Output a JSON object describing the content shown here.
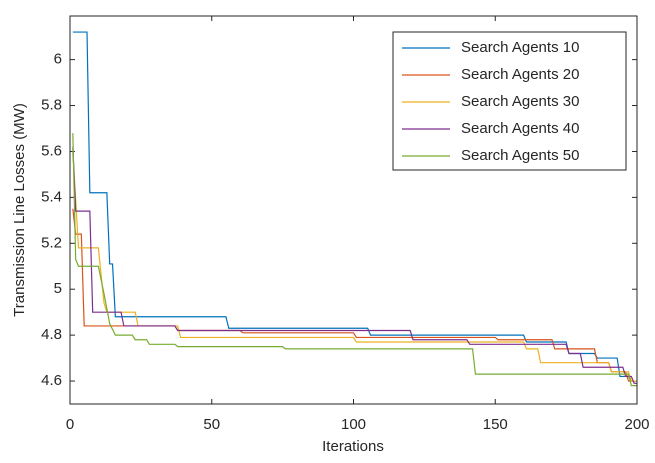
{
  "chart_data": {
    "type": "line",
    "xlabel": "Iterations",
    "ylabel": "Transmission Line Losses (MW)",
    "xlim": [
      0,
      200
    ],
    "xticks": [
      0,
      50,
      100,
      150,
      200
    ],
    "ylim": [
      4.5,
      6.19
    ],
    "yticks": [
      4.6,
      4.8,
      5,
      5.2,
      5.4,
      5.6,
      5.8,
      6
    ],
    "legend": "upper right",
    "series": [
      {
        "name": "Search Agents 10",
        "color": "#0072bd",
        "x": [
          1,
          6,
          7,
          13,
          14,
          15,
          16,
          55,
          56,
          105,
          106,
          160,
          161,
          175,
          176,
          185,
          186,
          193,
          194,
          197,
          198,
          200
        ],
        "values": [
          6.12,
          6.12,
          5.42,
          5.42,
          5.11,
          5.11,
          4.88,
          4.88,
          4.83,
          4.83,
          4.8,
          4.8,
          4.77,
          4.77,
          4.72,
          4.72,
          4.7,
          4.7,
          4.62,
          4.62,
          4.6,
          4.6
        ]
      },
      {
        "name": "Search Agents 20",
        "color": "#d95319",
        "x": [
          1,
          2,
          4,
          5,
          37,
          38,
          60,
          61,
          100,
          101,
          150,
          151,
          170,
          171,
          185,
          186,
          190,
          191,
          196,
          197,
          200
        ],
        "values": [
          5.35,
          5.24,
          5.24,
          4.84,
          4.84,
          4.82,
          4.82,
          4.81,
          4.81,
          4.79,
          4.79,
          4.78,
          4.78,
          4.74,
          4.74,
          4.68,
          4.68,
          4.64,
          4.64,
          4.6,
          4.6
        ]
      },
      {
        "name": "Search Agents 30",
        "color": "#edb120",
        "x": [
          1,
          3,
          10,
          12,
          13,
          23,
          24,
          38,
          39,
          100,
          101,
          160,
          161,
          165,
          166,
          190,
          191,
          197,
          198,
          200
        ],
        "values": [
          5.6,
          5.18,
          5.18,
          4.94,
          4.9,
          4.9,
          4.84,
          4.84,
          4.79,
          4.79,
          4.77,
          4.77,
          4.74,
          4.74,
          4.68,
          4.68,
          4.64,
          4.64,
          4.6,
          4.6
        ]
      },
      {
        "name": "Search Agents 40",
        "color": "#7e2f8e",
        "x": [
          1,
          2,
          7,
          8,
          18,
          19,
          37,
          38,
          120,
          121,
          140,
          141,
          175,
          176,
          180,
          181,
          195,
          196,
          198,
          199,
          200
        ],
        "values": [
          5.62,
          5.34,
          5.34,
          4.9,
          4.9,
          4.84,
          4.84,
          4.82,
          4.82,
          4.78,
          4.78,
          4.76,
          4.76,
          4.72,
          4.72,
          4.66,
          4.66,
          4.62,
          4.62,
          4.59,
          4.59
        ]
      },
      {
        "name": "Search Agents 50",
        "color": "#77ac30",
        "x": [
          1,
          2,
          3,
          10,
          12,
          14,
          16,
          22,
          23,
          27,
          28,
          37,
          38,
          75,
          76,
          142,
          143,
          197,
          198,
          200
        ],
        "values": [
          5.68,
          5.13,
          5.1,
          5.1,
          4.98,
          4.85,
          4.8,
          4.8,
          4.78,
          4.78,
          4.76,
          4.76,
          4.75,
          4.75,
          4.74,
          4.74,
          4.63,
          4.63,
          4.58,
          4.58
        ]
      }
    ]
  }
}
